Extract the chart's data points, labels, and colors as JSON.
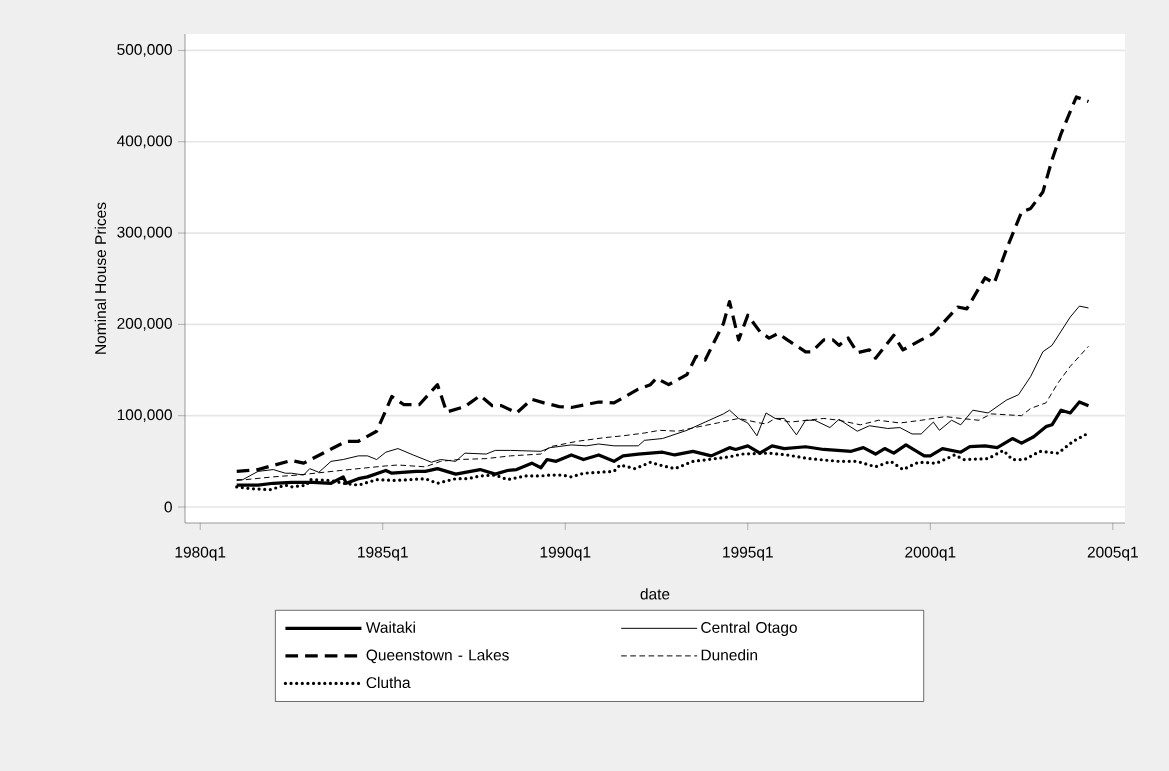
{
  "chart_data": {
    "type": "line",
    "xlabel": "date",
    "ylabel": "Nominal House Prices",
    "xlim": [
      "1979-08",
      "2005-05"
    ],
    "ylim": [
      -17500,
      518000
    ],
    "xticks": [
      {
        "value": "1980-01",
        "label": "1980q1"
      },
      {
        "value": "1985-01",
        "label": "1985q1"
      },
      {
        "value": "1990-01",
        "label": "1990q1"
      },
      {
        "value": "1995-01",
        "label": "1995q1"
      },
      {
        "value": "2000-01",
        "label": "2000q1"
      },
      {
        "value": "2005-01",
        "label": "2005q1"
      }
    ],
    "yticks": [
      0,
      {
        "value": 100000,
        "label": "100,000"
      },
      {
        "value": 200000,
        "label": "200,000"
      },
      {
        "value": 300000,
        "label": "300,000"
      },
      {
        "value": 400000,
        "label": "400,000"
      },
      {
        "value": 500000,
        "label": "500,000"
      }
    ],
    "grid": "y",
    "legend": "bottom",
    "marker": "none",
    "series": [
      {
        "name": "Waitaki",
        "color": "#000000",
        "line_style": "solid",
        "x": [
          "1981-01",
          "1981-08",
          "1982-01",
          "1982-07",
          "1983-02",
          "1983-08",
          "1983-12",
          "1984-01",
          "1984-05",
          "1984-08",
          "1985-02",
          "1985-04",
          "1985-12",
          "1986-03",
          "1986-07",
          "1987-01",
          "1987-09",
          "1988-02",
          "1988-06",
          "1988-09",
          "1989-02",
          "1989-05",
          "1989-07",
          "1989-10",
          "1990-03",
          "1990-07",
          "1990-12",
          "1991-05",
          "1991-08",
          "1992-01",
          "1992-09",
          "1993-01",
          "1993-07",
          "1994-01",
          "1994-07",
          "1994-09",
          "1995-01",
          "1995-05",
          "1995-09",
          "1996-01",
          "1996-08",
          "1997-02",
          "1997-11",
          "1998-03",
          "1998-07",
          "1998-10",
          "1999-01",
          "1999-05",
          "1999-11",
          "2000-01",
          "2000-05",
          "2000-11",
          "2001-02",
          "2001-07",
          "2001-11",
          "2002-04",
          "2002-07",
          "2002-11",
          "2003-03",
          "2003-05",
          "2003-08",
          "2003-11",
          "2004-02",
          "2004-05"
        ],
        "values": [
          24000,
          24000,
          26000,
          27000,
          27000,
          26000,
          33000,
          26000,
          31000,
          33000,
          40000,
          37000,
          39000,
          39000,
          42000,
          36000,
          41000,
          36000,
          40000,
          41000,
          48000,
          43000,
          52000,
          50000,
          57000,
          52000,
          57000,
          50000,
          56000,
          58000,
          60000,
          57000,
          61000,
          56000,
          65000,
          63000,
          67000,
          59000,
          67000,
          64000,
          66000,
          63000,
          61000,
          65000,
          58000,
          64000,
          59000,
          68000,
          56000,
          56000,
          64000,
          60000,
          66000,
          67000,
          65000,
          75000,
          70000,
          77000,
          88000,
          90000,
          106000,
          103000,
          115000,
          111000
        ]
      },
      {
        "name": "Central Otago",
        "color": "#000000",
        "line_style": "solid",
        "x": [
          "1981-01",
          "1981-03",
          "1981-08",
          "1982-01",
          "1982-05",
          "1982-07",
          "1982-11",
          "1983-01",
          "1983-04",
          "1983-08",
          "1983-12",
          "1984-05",
          "1984-08",
          "1984-11",
          "1985-02",
          "1985-06",
          "1985-11",
          "1986-05",
          "1986-08",
          "1987-01",
          "1987-04",
          "1987-11",
          "1988-02",
          "1988-07",
          "1989-05",
          "1989-08",
          "1990-03",
          "1990-08",
          "1990-12",
          "1991-05",
          "1992-01",
          "1992-03",
          "1992-09",
          "1993-05",
          "1993-11",
          "1994-05",
          "1994-07",
          "1994-10",
          "1995-01",
          "1995-04",
          "1995-07",
          "1995-10",
          "1996-01",
          "1996-05",
          "1996-08",
          "1996-11",
          "1997-04",
          "1997-07",
          "1998-01",
          "1998-05",
          "1998-11",
          "1999-03",
          "1999-07",
          "1999-10",
          "2000-02",
          "2000-04",
          "2000-08",
          "2000-11",
          "2001-03",
          "2001-08",
          "2002-02",
          "2002-06",
          "2002-10",
          "2003-02",
          "2003-05",
          "2003-11",
          "2004-02",
          "2004-05"
        ],
        "values": [
          30000,
          30000,
          39000,
          41000,
          37000,
          37000,
          35000,
          42000,
          38000,
          50000,
          52000,
          56000,
          56000,
          52000,
          60000,
          64000,
          57000,
          49000,
          52000,
          50000,
          59000,
          58000,
          62000,
          62000,
          61000,
          65000,
          68000,
          67000,
          69000,
          67000,
          67000,
          73000,
          75000,
          84000,
          93000,
          102000,
          106000,
          97000,
          92000,
          78000,
          103000,
          97000,
          97000,
          79000,
          95000,
          95000,
          87000,
          96000,
          83000,
          89000,
          86000,
          87000,
          80000,
          80000,
          93000,
          84000,
          95000,
          90000,
          106000,
          103000,
          117000,
          123000,
          143000,
          170000,
          177000,
          208000,
          220000,
          218000
        ]
      },
      {
        "name": "Queenstown - Lakes",
        "color": "#000000",
        "line_style": "dashed",
        "x": [
          "1981-01",
          "1981-08",
          "1982-07",
          "1982-11",
          "1984-01",
          "1984-05",
          "1984-11",
          "1985-04",
          "1985-08",
          "1986-01",
          "1986-07",
          "1986-10",
          "1987-04",
          "1987-09",
          "1988-01",
          "1988-04",
          "1988-09",
          "1989-02",
          "1989-06",
          "1989-11",
          "1990-03",
          "1990-12",
          "1991-05",
          "1992-01",
          "1992-05",
          "1992-07",
          "1992-11",
          "1993-05",
          "1993-08",
          "1993-11",
          "1994-05",
          "1994-07",
          "1994-10",
          "1995-01",
          "1995-05",
          "1995-08",
          "1995-11",
          "1996-02",
          "1996-08",
          "1996-10",
          "1997-02",
          "1997-05",
          "1997-07",
          "1997-10",
          "1998-01",
          "1998-05",
          "1998-07",
          "1999-01",
          "1999-04",
          "1999-10",
          "2000-02",
          "2000-10",
          "2001-01",
          "2001-07",
          "2001-10",
          "2002-02",
          "2002-07",
          "2002-10",
          "2003-02",
          "2003-05",
          "2003-08",
          "2004-01",
          "2004-05"
        ],
        "values": [
          39000,
          41000,
          51000,
          48000,
          72000,
          72000,
          83000,
          121000,
          112000,
          112000,
          134000,
          104000,
          110000,
          122000,
          111000,
          111000,
          103000,
          118000,
          114000,
          110000,
          109000,
          115000,
          114000,
          129000,
          134000,
          141000,
          134000,
          145000,
          165000,
          161000,
          201000,
          225000,
          183000,
          210000,
          192000,
          185000,
          190000,
          183000,
          170000,
          170000,
          183000,
          183000,
          177000,
          185000,
          169000,
          172000,
          163000,
          188000,
          172000,
          183000,
          190000,
          219000,
          217000,
          251000,
          245000,
          282000,
          323000,
          327000,
          345000,
          380000,
          409000,
          449000,
          444000
        ]
      },
      {
        "name": "Dunedin",
        "color": "#000000",
        "line_style": "dashed",
        "x": [
          "1981-01",
          "1982-01",
          "1982-09",
          "1984-02",
          "1985-02",
          "1985-06",
          "1986-03",
          "1986-08",
          "1987-02",
          "1987-11",
          "1988-07",
          "1989-05",
          "1989-08",
          "1990-05",
          "1991-02",
          "1991-08",
          "1992-03",
          "1992-08",
          "1993-02",
          "1993-09",
          "1994-03",
          "1994-10",
          "1995-05",
          "1995-07",
          "1995-10",
          "1996-03",
          "1997-02",
          "1997-07",
          "1998-02",
          "1998-08",
          "1999-03",
          "1999-10",
          "2000-06",
          "2000-11",
          "2001-05",
          "2001-09",
          "2002-07",
          "2002-10",
          "2003-03",
          "2003-07",
          "2003-11",
          "2004-05"
        ],
        "values": [
          29000,
          33000,
          35000,
          41000,
          45000,
          46000,
          44000,
          50000,
          52000,
          53000,
          56000,
          58000,
          66000,
          72000,
          76000,
          78000,
          81000,
          84000,
          83000,
          88000,
          92000,
          97000,
          92000,
          91000,
          97000,
          93000,
          97000,
          95000,
          90000,
          95000,
          92000,
          95000,
          99000,
          97000,
          95000,
          102000,
          100000,
          108000,
          114000,
          136000,
          154000,
          176000
        ]
      },
      {
        "name": "Clutha",
        "color": "#000000",
        "line_style": "dotted",
        "x": [
          "1981-01",
          "1981-06",
          "1981-12",
          "1982-05",
          "1982-07",
          "1982-12",
          "1983-01",
          "1983-08",
          "1983-12",
          "1984-05",
          "1984-11",
          "1985-05",
          "1985-10",
          "1986-03",
          "1986-07",
          "1987-01",
          "1987-05",
          "1987-09",
          "1988-02",
          "1988-06",
          "1988-12",
          "1989-05",
          "1989-08",
          "1989-12",
          "1990-03",
          "1990-07",
          "1990-12",
          "1991-05",
          "1991-07",
          "1991-12",
          "1992-05",
          "1992-08",
          "1993-01",
          "1993-07",
          "1993-12",
          "1994-07",
          "1994-11",
          "1995-08",
          "1996-02",
          "1996-09",
          "1997-07",
          "1998-01",
          "1998-07",
          "1998-12",
          "1999-04",
          "1999-09",
          "2000-03",
          "2000-09",
          "2000-12",
          "2001-08",
          "2002-01",
          "2002-04",
          "2002-08",
          "2003-01",
          "2003-07",
          "2003-12",
          "2004-05"
        ],
        "values": [
          22000,
          20000,
          19000,
          24000,
          22000,
          24000,
          30000,
          29000,
          26000,
          24000,
          30000,
          29000,
          30000,
          31000,
          26000,
          31000,
          31000,
          34000,
          35000,
          30000,
          34000,
          34000,
          35000,
          35000,
          33000,
          37000,
          38000,
          39000,
          46000,
          42000,
          49000,
          46000,
          42000,
          50000,
          52000,
          55000,
          58000,
          59000,
          57000,
          53000,
          50000,
          50000,
          44000,
          50000,
          41000,
          49000,
          48000,
          57000,
          52000,
          53000,
          62000,
          52000,
          52000,
          61000,
          59000,
          72000,
          81000
        ]
      }
    ]
  }
}
